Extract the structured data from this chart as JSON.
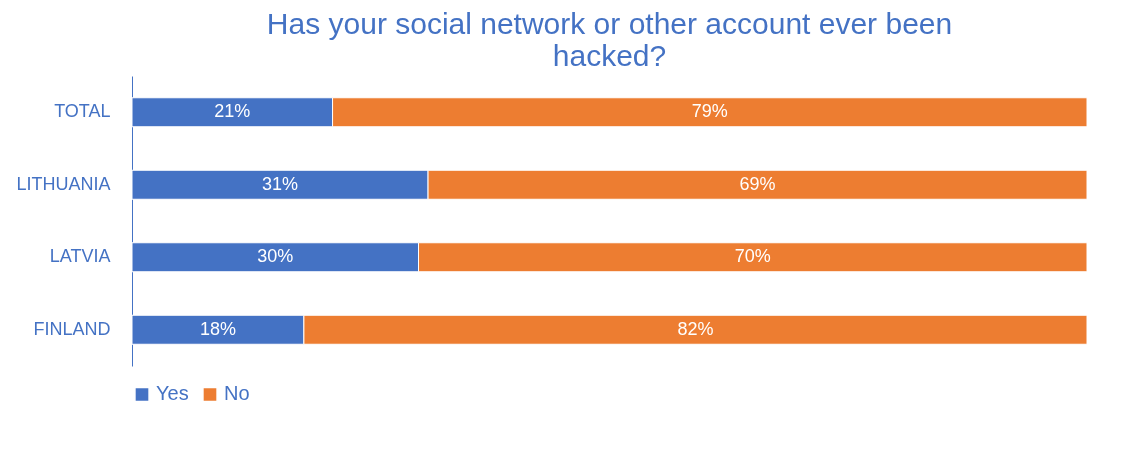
{
  "chart_data": {
    "type": "bar",
    "orientation": "horizontal",
    "stacked": true,
    "title": "Has your social network or other account ever been hacked?",
    "categories": [
      "TOTAL",
      "LITHUANIA",
      "LATVIA",
      "FINLAND"
    ],
    "series": [
      {
        "name": "Yes",
        "color": "#4472c4",
        "values": [
          21,
          31,
          30,
          18
        ],
        "value_labels": [
          "21%",
          "31%",
          "30%",
          "18%"
        ]
      },
      {
        "name": "No",
        "color": "#ed7d31",
        "values": [
          79,
          69,
          70,
          82
        ],
        "value_labels": [
          "79%",
          "69%",
          "70%",
          "82%"
        ]
      }
    ],
    "legend": "bottom",
    "grid": false
  }
}
